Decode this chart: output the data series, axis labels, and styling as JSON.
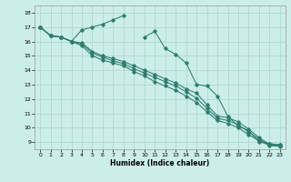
{
  "xlabel": "Humidex (Indice chaleur)",
  "bg_color": "#cceee8",
  "grid_color": "#aad4cc",
  "line_color": "#2e7d6e",
  "xlim": [
    -0.5,
    23.5
  ],
  "ylim": [
    8.5,
    18.5
  ],
  "xticks": [
    0,
    1,
    2,
    3,
    4,
    5,
    6,
    7,
    8,
    9,
    10,
    11,
    12,
    13,
    14,
    15,
    16,
    17,
    18,
    19,
    20,
    21,
    22,
    23
  ],
  "yticks": [
    9,
    10,
    11,
    12,
    13,
    14,
    15,
    16,
    17,
    18
  ],
  "y_peak": [
    17.0,
    16.4,
    16.3,
    16.0,
    16.8,
    17.0,
    17.2,
    17.5,
    17.8,
    null,
    16.3,
    16.7,
    15.5,
    15.1,
    14.5,
    13.0,
    12.9,
    12.2,
    10.8,
    10.1,
    9.8,
    9.0,
    8.9,
    8.8
  ],
  "y_low1": [
    17.0,
    16.4,
    16.3,
    16.0,
    15.9,
    15.3,
    15.0,
    14.8,
    14.6,
    14.3,
    14.0,
    13.7,
    13.4,
    13.1,
    12.7,
    12.4,
    11.6,
    10.8,
    10.7,
    10.4,
    9.9,
    9.3,
    8.85,
    8.8
  ],
  "y_low2": [
    17.0,
    16.4,
    16.3,
    16.0,
    15.8,
    15.2,
    14.9,
    14.65,
    14.45,
    14.1,
    13.8,
    13.5,
    13.2,
    12.9,
    12.5,
    12.05,
    11.35,
    10.65,
    10.5,
    10.2,
    9.7,
    9.2,
    8.8,
    8.75
  ],
  "y_low3": [
    17.0,
    16.4,
    16.3,
    16.0,
    15.7,
    15.0,
    14.7,
    14.5,
    14.3,
    13.9,
    13.6,
    13.2,
    12.9,
    12.6,
    12.2,
    11.75,
    11.1,
    10.5,
    10.3,
    10.0,
    9.5,
    9.1,
    8.75,
    8.7
  ]
}
